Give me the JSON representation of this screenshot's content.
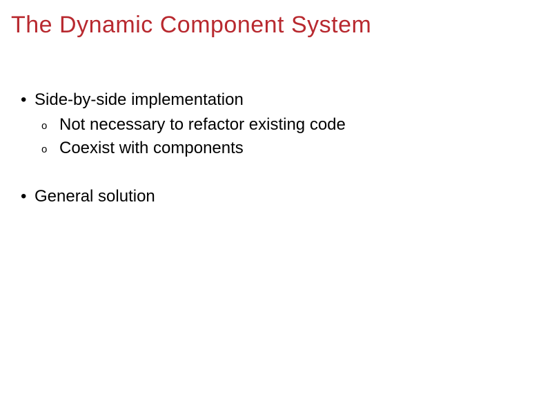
{
  "colors": {
    "title": "#b8292f",
    "body": "#000000",
    "background": "#ffffff",
    "bullet": "#000000",
    "subbullet": "#000000"
  },
  "typography": {
    "title_fontsize": 34,
    "body_fontsize": 24,
    "subbullet_fontsize": 15,
    "font_family": "Verdana, Geneva, sans-serif"
  },
  "slide": {
    "title": "The Dynamic Component System",
    "groups": [
      {
        "text": "Side-by-side implementation",
        "subitems": [
          "Not necessary to refactor existing code",
          "Coexist with components"
        ]
      },
      {
        "text": "General solution",
        "subitems": []
      }
    ]
  },
  "glyphs": {
    "l1_bullet": "•",
    "l2_bullet": "o"
  }
}
